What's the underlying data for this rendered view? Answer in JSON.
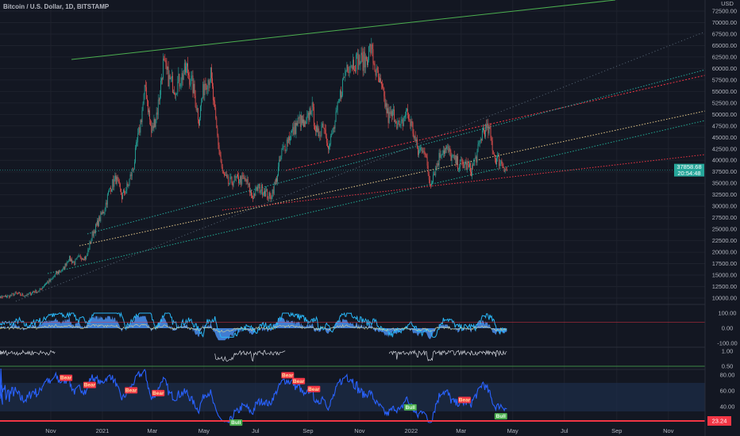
{
  "header": {
    "title": "Bitcoin / U.S. Dollar, 1D, BITSTAMP"
  },
  "price_axis": {
    "currency": "USD",
    "ticks": [
      "72500.00",
      "70000.00",
      "67500.00",
      "65000.00",
      "62500.00",
      "60000.00",
      "57500.00",
      "55000.00",
      "52500.00",
      "50000.00",
      "47500.00",
      "45000.00",
      "42500.00",
      "40000.00",
      "37500.00",
      "35000.00",
      "32500.00",
      "30000.00",
      "27500.00",
      "25000.00",
      "22500.00",
      "20000.00",
      "17500.00",
      "15000.00",
      "12500.00",
      "10000.00"
    ],
    "last_price": "37858.68",
    "countdown": "20:54:48"
  },
  "oscillator_axis": {
    "ticks": [
      "100.00",
      "0.00",
      "-100.00"
    ]
  },
  "ratio_axis": {
    "ticks": [
      "1.00",
      "0.50"
    ]
  },
  "rsi_axis": {
    "ticks": [
      "80.00",
      "60.00",
      "40.00"
    ],
    "last_value": "23.24"
  },
  "time_axis": {
    "labels": [
      "Nov",
      "2021",
      "Mar",
      "May",
      "Jul",
      "Sep",
      "Nov",
      "2022",
      "Mar",
      "May",
      "Jul",
      "Sep",
      "Nov"
    ]
  },
  "colors": {
    "background": "#131722",
    "up": "#26a69a",
    "down": "#ef5350",
    "rsi": "#2962ff",
    "trend_upper": "#4caf50",
    "last_price": "#26a69a",
    "rsi_alert": "#f23645"
  },
  "chart_data": {
    "type": "candlestick",
    "symbol": "BTCUSD",
    "interval": "1D",
    "ylim": [
      10000,
      75000
    ],
    "weekly_closes_start": "2020-09-06",
    "weekly_closes": [
      10300,
      10450,
      11000,
      10700,
      10600,
      11400,
      11500,
      13100,
      13800,
      15500,
      16000,
      18700,
      17700,
      19100,
      18800,
      23800,
      26500,
      29300,
      34000,
      36000,
      32100,
      34300,
      39000,
      47000,
      56000,
      46000,
      51000,
      61000,
      57500,
      55800,
      58000,
      60000,
      56000,
      49000,
      57000,
      58500,
      46500,
      37000,
      35000,
      35700,
      35800,
      35500,
      32000,
      34000,
      33500,
      31800,
      35400,
      41500,
      44600,
      46500,
      48900,
      47000,
      52000,
      45000,
      48300,
      42900,
      48000,
      55000,
      60800,
      61300,
      61800,
      61500,
      64500,
      58600,
      54800,
      49300,
      50000,
      46700,
      50800,
      47300,
      41700,
      43100,
      35000,
      38300,
      42400,
      42200,
      40100,
      39100,
      39000,
      37800,
      41300,
      46800,
      46400,
      40500,
      39700,
      37858.68
    ],
    "signals": [
      {
        "label": "Bear",
        "date": "2020-11-19"
      },
      {
        "label": "Bear",
        "date": "2020-12-17"
      },
      {
        "label": "Bear",
        "date": "2021-02-04"
      },
      {
        "label": "Bear",
        "date": "2021-03-08"
      },
      {
        "label": "Bull",
        "date": "2021-06-08"
      },
      {
        "label": "Bear",
        "date": "2021-08-08"
      },
      {
        "label": "Bear",
        "date": "2021-08-21"
      },
      {
        "label": "Bear",
        "date": "2021-09-08"
      },
      {
        "label": "Bull",
        "date": "2021-12-31"
      },
      {
        "label": "Bear",
        "date": "2022-03-05"
      },
      {
        "label": "Bull",
        "date": "2022-04-17"
      }
    ]
  }
}
